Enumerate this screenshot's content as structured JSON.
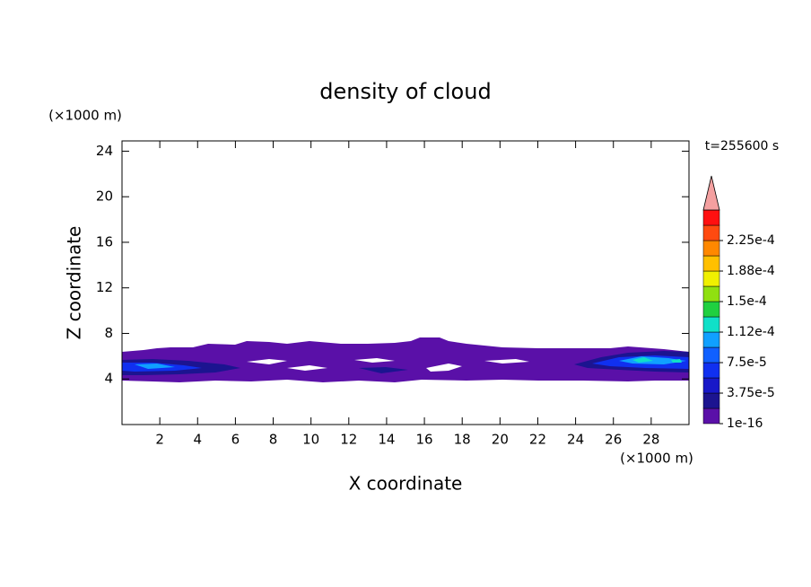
{
  "chart_data": {
    "type": "contour",
    "title": "density of cloud",
    "x_label": "X coordinate",
    "y_label": "Z coordinate",
    "x_unit": "(×1000 m)",
    "y_unit": "(×1000 m)",
    "annotation": "t=255600 s",
    "xlim": [
      0,
      30
    ],
    "ylim": [
      0,
      24.9
    ],
    "xticks": [
      2,
      4,
      6,
      8,
      10,
      12,
      14,
      16,
      18,
      20,
      22,
      24,
      26,
      28
    ],
    "yticks": [
      4,
      8,
      12,
      16,
      20,
      24
    ],
    "colorbar": {
      "levels": [
        {
          "value": 1e-16,
          "label": "1e-16"
        },
        {
          "value": 3.75e-05,
          "label": "3.75e-5"
        },
        {
          "value": 7.5e-05,
          "label": "7.5e-5"
        },
        {
          "value": 0.000112,
          "label": "1.12e-4"
        },
        {
          "value": 0.00015,
          "label": "1.5e-4"
        },
        {
          "value": 0.000188,
          "label": "1.88e-4"
        },
        {
          "value": 0.000225,
          "label": "2.25e-4"
        }
      ],
      "colors": [
        "#5a10a8",
        "#1c1490",
        "#1818c8",
        "#1030f0",
        "#1060ff",
        "#10a0ff",
        "#10e0c8",
        "#20d040",
        "#90e010",
        "#f0f000",
        "#ffc000",
        "#ff8800",
        "#ff4a10",
        "#ff1010"
      ],
      "over_color": "#f4a0a0"
    }
  }
}
